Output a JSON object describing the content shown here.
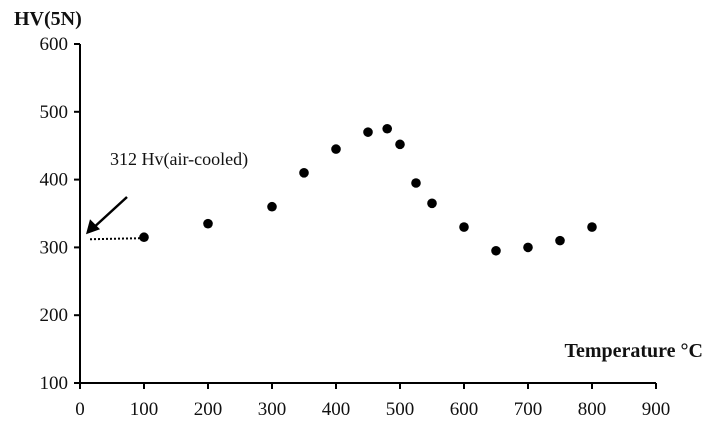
{
  "chart_data": {
    "type": "scatter",
    "title": "",
    "xlabel": "Temperature °C",
    "ylabel": "HV(5N)",
    "xlim": [
      0,
      900
    ],
    "ylim": [
      100,
      600
    ],
    "xticks": [
      0,
      100,
      200,
      300,
      400,
      500,
      600,
      700,
      800,
      900
    ],
    "yticks": [
      100,
      200,
      300,
      400,
      500,
      600
    ],
    "grid": false,
    "series": [
      {
        "x": [
          100,
          200,
          300,
          350,
          400,
          450,
          480,
          500,
          525,
          550,
          600,
          650,
          700,
          750,
          800
        ],
        "y": [
          315,
          335,
          360,
          410,
          445,
          470,
          475,
          452,
          395,
          365,
          330,
          295,
          300,
          310,
          330
        ]
      }
    ],
    "annotations": [
      {
        "text": "312 Hv(air-cooled)",
        "x": 0,
        "y": 312
      }
    ],
    "colors": {
      "marker": "#000000",
      "axis": "#000000"
    }
  }
}
